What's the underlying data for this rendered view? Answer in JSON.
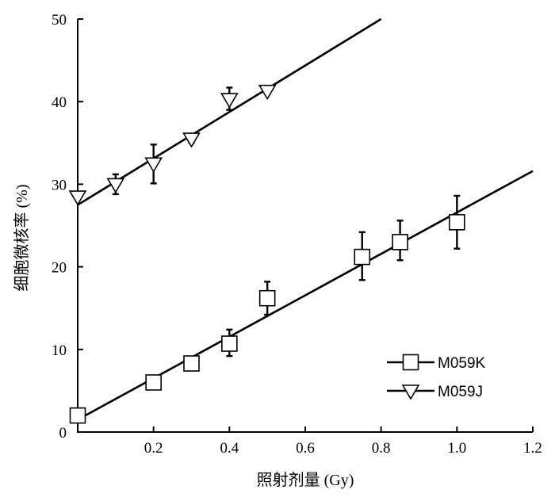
{
  "chart_data": {
    "type": "scatter",
    "xlabel": "照射剂量 (Gy)",
    "ylabel": "细胞微核率 (%)",
    "xlim": [
      0,
      1.2
    ],
    "ylim": [
      0,
      50
    ],
    "x_ticks": [
      {
        "value": 0.2,
        "label": "0.2"
      },
      {
        "value": 0.4,
        "label": "0.4"
      },
      {
        "value": 0.6,
        "label": "0.6"
      },
      {
        "value": 0.8,
        "label": "0.8"
      },
      {
        "value": 1.0,
        "label": "1.0"
      },
      {
        "value": 1.2,
        "label": "1.2"
      }
    ],
    "y_ticks": [
      {
        "value": 0,
        "label": "0"
      },
      {
        "value": 10,
        "label": "10"
      },
      {
        "value": 20,
        "label": "20"
      },
      {
        "value": 30,
        "label": "30"
      },
      {
        "value": 40,
        "label": "40"
      },
      {
        "value": 50,
        "label": "50"
      }
    ],
    "grid": false,
    "legend_position": "bottom-right",
    "series": [
      {
        "name": "M059K",
        "marker": "square",
        "points": [
          {
            "x": 0.0,
            "y": 2.0,
            "err_low": 0.0,
            "err_high": 0.0
          },
          {
            "x": 0.2,
            "y": 6.0,
            "err_low": 0.5,
            "err_high": 0.6
          },
          {
            "x": 0.3,
            "y": 8.3,
            "err_low": 0.3,
            "err_high": 0.4
          },
          {
            "x": 0.4,
            "y": 10.7,
            "err_low": 1.5,
            "err_high": 1.7
          },
          {
            "x": 0.5,
            "y": 16.2,
            "err_low": 2.0,
            "err_high": 2.0
          },
          {
            "x": 0.75,
            "y": 21.2,
            "err_low": 2.8,
            "err_high": 3.0
          },
          {
            "x": 0.85,
            "y": 23.0,
            "err_low": 2.2,
            "err_high": 2.6
          },
          {
            "x": 1.0,
            "y": 25.4,
            "err_low": 3.2,
            "err_high": 3.2
          }
        ],
        "fit_line": {
          "x": [
            0.0,
            1.2
          ],
          "y": [
            1.5,
            31.6
          ]
        }
      },
      {
        "name": "M059J",
        "marker": "triangle-down",
        "points": [
          {
            "x": 0.0,
            "y": 28.5,
            "err_low": 0.0,
            "err_high": 0.0
          },
          {
            "x": 0.1,
            "y": 30.0,
            "err_low": 1.2,
            "err_high": 1.2
          },
          {
            "x": 0.2,
            "y": 32.5,
            "err_low": 2.4,
            "err_high": 2.3
          },
          {
            "x": 0.3,
            "y": 35.5,
            "err_low": 0.5,
            "err_high": 0.6
          },
          {
            "x": 0.4,
            "y": 40.3,
            "err_low": 1.3,
            "err_high": 1.4
          },
          {
            "x": 0.5,
            "y": 41.3,
            "err_low": 0.0,
            "err_high": 0.0
          }
        ],
        "fit_line": {
          "x": [
            0.0,
            0.8
          ],
          "y": [
            27.5,
            50.0
          ]
        }
      }
    ]
  }
}
